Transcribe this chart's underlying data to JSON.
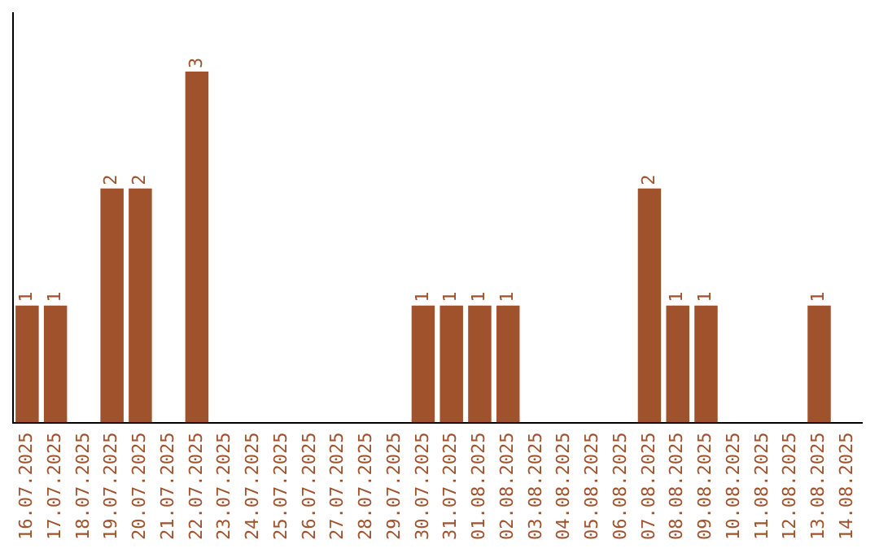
{
  "chart_data": {
    "type": "bar",
    "categories": [
      "16.07.2025",
      "17.07.2025",
      "18.07.2025",
      "19.07.2025",
      "20.07.2025",
      "21.07.2025",
      "22.07.2025",
      "23.07.2025",
      "24.07.2025",
      "25.07.2025",
      "26.07.2025",
      "27.07.2025",
      "28.07.2025",
      "29.07.2025",
      "30.07.2025",
      "31.07.2025",
      "01.08.2025",
      "02.08.2025",
      "03.08.2025",
      "04.08.2025",
      "05.08.2025",
      "06.08.2025",
      "07.08.2025",
      "08.08.2025",
      "09.08.2025",
      "10.08.2025",
      "11.08.2025",
      "12.08.2025",
      "13.08.2025",
      "14.08.2025"
    ],
    "values": [
      1,
      1,
      0,
      2,
      2,
      0,
      3,
      0,
      0,
      0,
      0,
      0,
      0,
      0,
      1,
      1,
      1,
      1,
      0,
      0,
      0,
      0,
      2,
      1,
      1,
      0,
      0,
      0,
      1,
      0
    ],
    "value_labels": [
      "1",
      "1",
      null,
      "2",
      "2",
      null,
      "3",
      null,
      null,
      null,
      null,
      null,
      null,
      null,
      "1",
      "1",
      "1",
      "1",
      null,
      null,
      null,
      null,
      "2",
      "1",
      "1",
      null,
      null,
      null,
      "1",
      null
    ],
    "color": "#a0522d",
    "grid": false,
    "legend": false,
    "tick_labels": "x"
  }
}
